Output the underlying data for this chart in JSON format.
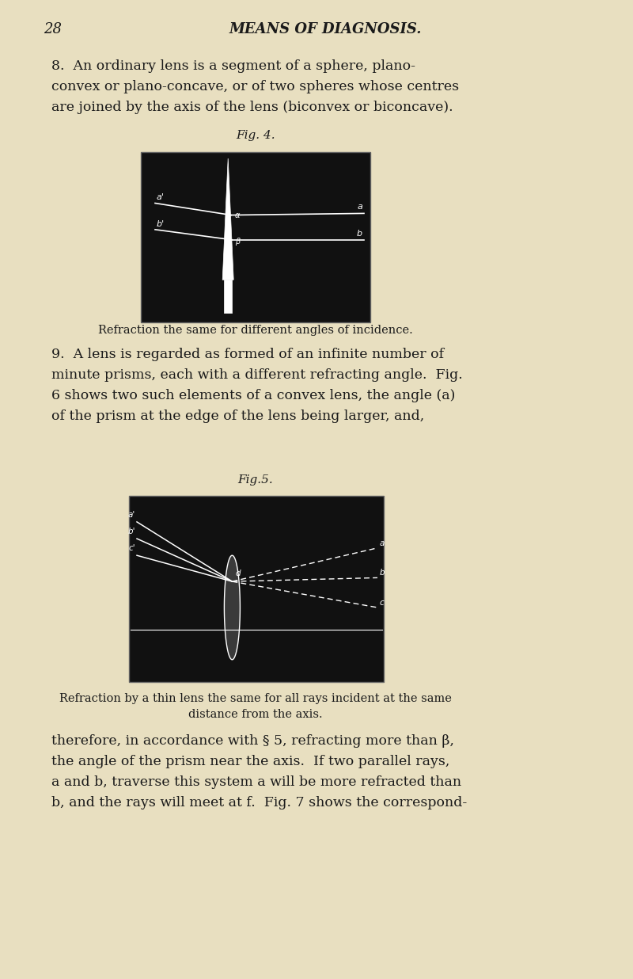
{
  "bg_color": "#e8dfc0",
  "page_number": "28",
  "title": "MEANS OF DIAGNOSIS.",
  "fig4_title": "Fig. 4.",
  "fig4_caption": "Refraction the same for different angles of incidence.",
  "fig5_title": "Fig.5.",
  "fig5_caption": "Refraction by a thin lens the same for all rays incident at the same\ndistance from the axis.",
  "para1_line1": "8.  An ordinary lens is a segment of a sphere, plano-",
  "para1_line2": "convex or plano-concave, or of two spheres whose centres",
  "para1_line3": "are joined by the axis of the lens (biconvex or biconcave).",
  "para2_line1": "9.  A lens is regarded as formed of an infinite number of",
  "para2_line2": "minute prisms, each with a different refracting angle.  Fig.",
  "para2_line3": "6 shows two such elements of a convex lens, the angle (a)",
  "para2_line4": "of the prism at the edge of the lens being larger, and,",
  "para3_line1": "therefore, in accordance with § 5, refracting more than β,",
  "para3_line2": "the angle of the prism near the axis.  If two parallel rays,",
  "para3_line3": "a and b, traverse this system a will be more refracted than",
  "para3_line4": "b, and the rays will meet at f.  Fig. 7 shows the correspond-"
}
